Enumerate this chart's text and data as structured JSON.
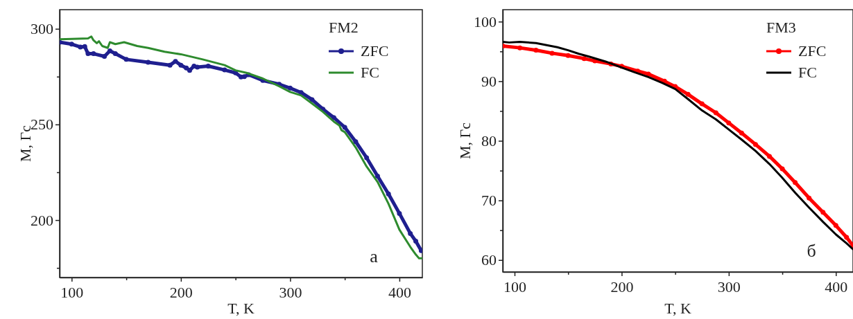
{
  "chart_data": [
    {
      "type": "line",
      "xlabel": "T, K",
      "ylabel": "M, Гс",
      "legend_title": "FM2",
      "legend": "top right",
      "grid": false,
      "xlim": [
        89,
        421
      ],
      "ylim": [
        170,
        310
      ],
      "xticks": [
        100,
        {
          "value": 150,
          "label": null
        },
        200,
        {
          "value": 250,
          "label": null
        },
        300,
        {
          "value": 350,
          "label": null
        },
        400
      ],
      "yticks": [
        {
          "value": 175,
          "label": null
        },
        200,
        {
          "value": 225,
          "label": null
        },
        250,
        {
          "value": 275,
          "label": null
        },
        300
      ],
      "annotations": [
        "a"
      ],
      "series": [
        {
          "name": "ZFC",
          "color": "#1f1f8f",
          "marker": "circle",
          "x": [
            89,
            100,
            108,
            112,
            115,
            120,
            130,
            135,
            140,
            150,
            170,
            190,
            195,
            200,
            205,
            208,
            212,
            215,
            225,
            240,
            250,
            255,
            258,
            262,
            275,
            290,
            300,
            310,
            320,
            330,
            340,
            350,
            360,
            370,
            380,
            390,
            400,
            410,
            415,
            420
          ],
          "values": [
            293,
            292,
            290.5,
            290.7,
            287,
            287,
            285.6,
            288.5,
            287,
            284,
            282.5,
            281,
            283,
            281,
            279.5,
            278.3,
            280.5,
            280,
            280.5,
            278.5,
            277,
            274.8,
            275,
            276,
            273,
            271,
            269,
            266.7,
            263,
            258,
            253.6,
            248.5,
            241,
            232.6,
            223,
            213.7,
            203.5,
            193,
            189,
            184
          ]
        },
        {
          "name": "FC",
          "color": "#2e8b2e",
          "marker": "none",
          "x": [
            89,
            100,
            115,
            118,
            120,
            123,
            125,
            128,
            133,
            135,
            140,
            148,
            160,
            170,
            185,
            200,
            220,
            240,
            250,
            260,
            275,
            290,
            300,
            310,
            320,
            330,
            340,
            345,
            347,
            350,
            360,
            370,
            380,
            390,
            400,
            410,
            415,
            418,
            421
          ],
          "values": [
            294.5,
            294.7,
            295,
            296,
            294,
            292.5,
            293.5,
            291,
            290,
            293,
            292,
            293,
            291,
            290,
            288,
            286.7,
            284,
            281,
            278.3,
            277,
            274,
            270,
            267,
            265.2,
            261,
            256.6,
            251.5,
            249.5,
            247,
            246,
            238,
            228,
            220,
            208.6,
            195,
            186,
            182,
            180,
            180
          ]
        }
      ]
    },
    {
      "type": "line",
      "xlabel": "T, K",
      "ylabel": "M, Гс",
      "legend_title": "FM3",
      "legend": "top right",
      "grid": false,
      "xlim": [
        89,
        416
      ],
      "ylim": [
        58,
        102
      ],
      "xticks": [
        100,
        {
          "value": 150,
          "label": null
        },
        200,
        {
          "value": 250,
          "label": null
        },
        300,
        {
          "value": 350,
          "label": null
        },
        400
      ],
      "yticks": [
        60,
        {
          "value": 65,
          "label": null
        },
        70,
        {
          "value": 75,
          "label": null
        },
        80,
        {
          "value": 85,
          "label": null
        },
        90,
        {
          "value": 95,
          "label": null
        },
        100
      ],
      "annotations": [
        "б"
      ],
      "series": [
        {
          "name": "ZFC",
          "color": "#ff0000",
          "marker": "circle",
          "x": [
            89,
            105,
            120,
            135,
            150,
            165,
            175,
            190,
            200,
            215,
            225,
            240,
            250,
            262,
            275,
            288,
            300,
            312,
            325,
            338,
            350,
            362,
            375,
            388,
            400,
            410,
            416
          ],
          "values": [
            95.9,
            95.6,
            95.2,
            94.7,
            94.3,
            93.8,
            93.4,
            92.9,
            92.5,
            91.7,
            91.2,
            90,
            89.1,
            87.8,
            86.2,
            84.7,
            83,
            81.3,
            79.4,
            77.4,
            75.3,
            73,
            70.4,
            68,
            65.8,
            63.8,
            62.4
          ]
        },
        {
          "name": "FC",
          "color": "#000000",
          "marker": "none",
          "x": [
            89,
            95,
            105,
            120,
            140,
            150,
            160,
            170,
            185,
            200,
            212,
            225,
            238,
            250,
            262,
            275,
            288,
            300,
            312,
            325,
            338,
            350,
            362,
            375,
            388,
            400,
            410,
            416
          ],
          "values": [
            96.6,
            96.5,
            96.6,
            96.4,
            95.7,
            95.2,
            94.6,
            94.1,
            93.3,
            92.3,
            91.5,
            90.7,
            89.7,
            88.7,
            87,
            85.1,
            83.6,
            81.9,
            80.2,
            78.3,
            76.1,
            73.8,
            71.3,
            68.8,
            66.4,
            64.3,
            62.8,
            61.8
          ]
        }
      ]
    }
  ]
}
